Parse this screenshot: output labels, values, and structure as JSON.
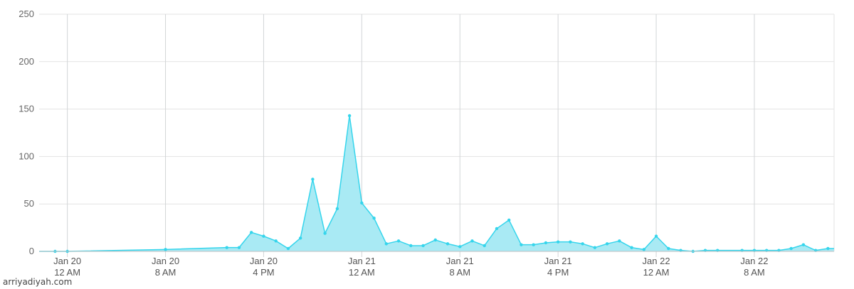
{
  "chart_data": {
    "type": "area",
    "title": "",
    "xlabel": "",
    "ylabel": "",
    "ylim": [
      0,
      250
    ],
    "yticks": [
      0,
      50,
      100,
      150,
      200,
      250
    ],
    "grid": true,
    "legend": "none",
    "x_unit": "hours since Jan 20 12 AM",
    "xlim": [
      -2.3,
      62.5
    ],
    "xticks": [
      {
        "x": 0,
        "line1": "Jan 20",
        "line2": "12 AM"
      },
      {
        "x": 8,
        "line1": "Jan 20",
        "line2": "8 AM"
      },
      {
        "x": 16,
        "line1": "Jan 20",
        "line2": "4 PM"
      },
      {
        "x": 24,
        "line1": "Jan 21",
        "line2": "12 AM"
      },
      {
        "x": 32,
        "line1": "Jan 21",
        "line2": "8 AM"
      },
      {
        "x": 40,
        "line1": "Jan 21",
        "line2": "4 PM"
      },
      {
        "x": 48,
        "line1": "Jan 22",
        "line2": "12 AM"
      },
      {
        "x": 56,
        "line1": "Jan 22",
        "line2": "8 AM"
      }
    ],
    "series": [
      {
        "points": [
          [
            -2.3,
            0
          ],
          [
            -1.0,
            0
          ],
          [
            0.0,
            0
          ],
          [
            8.0,
            2
          ],
          [
            13.0,
            4
          ],
          [
            14.0,
            4
          ],
          [
            15.0,
            20
          ],
          [
            16.0,
            16
          ],
          [
            17.0,
            11
          ],
          [
            18.0,
            3
          ],
          [
            19.0,
            14
          ],
          [
            20.0,
            76
          ],
          [
            21.0,
            19
          ],
          [
            22.0,
            45
          ],
          [
            23.0,
            143
          ],
          [
            24.0,
            51
          ],
          [
            25.0,
            35
          ],
          [
            26.0,
            8
          ],
          [
            27.0,
            11
          ],
          [
            28.0,
            6
          ],
          [
            29.0,
            6
          ],
          [
            30.0,
            12
          ],
          [
            31.0,
            8
          ],
          [
            32.0,
            5
          ],
          [
            33.0,
            11
          ],
          [
            34.0,
            6
          ],
          [
            35.0,
            24
          ],
          [
            36.0,
            33
          ],
          [
            37.0,
            7
          ],
          [
            38.0,
            7
          ],
          [
            39.0,
            9
          ],
          [
            40.0,
            10
          ],
          [
            41.0,
            10
          ],
          [
            42.0,
            8
          ],
          [
            43.0,
            4
          ],
          [
            44.0,
            8
          ],
          [
            45.0,
            11
          ],
          [
            46.0,
            4
          ],
          [
            47.0,
            2
          ],
          [
            48.0,
            16
          ],
          [
            49.0,
            3
          ],
          [
            50.0,
            1
          ],
          [
            51.0,
            0
          ],
          [
            52.0,
            1
          ],
          [
            53.0,
            1
          ],
          [
            55.0,
            1
          ],
          [
            56.0,
            1
          ],
          [
            57.0,
            1
          ],
          [
            58.0,
            1
          ],
          [
            59.0,
            3
          ],
          [
            60.0,
            7
          ],
          [
            61.0,
            1
          ],
          [
            62.0,
            3
          ],
          [
            62.5,
            3
          ]
        ],
        "fill_color": "#a9eaf4",
        "line_color": "#35d5ec"
      }
    ],
    "colors": {
      "grid_horizontal": "#e3e3e3",
      "grid_vertical": "#d2d5d7",
      "axis": "#bfbfbf"
    }
  },
  "watermark": {
    "text": "arriyadiyah.com"
  }
}
